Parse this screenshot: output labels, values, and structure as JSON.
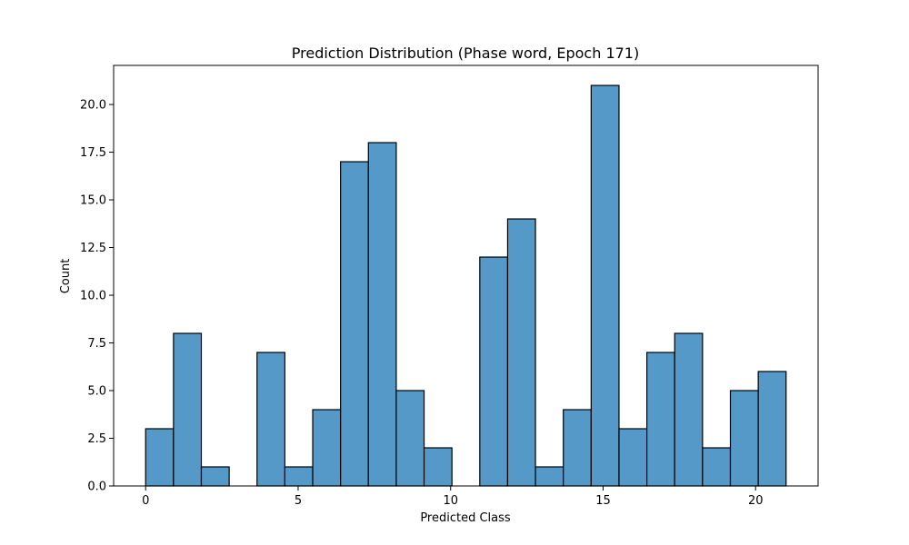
{
  "chart_data": {
    "type": "bar",
    "title": "Prediction Distribution (Phase word, Epoch 171)",
    "xlabel": "Predicted Class",
    "ylabel": "Count",
    "bin_range": [
      0,
      21
    ],
    "bin_count": 23,
    "values": [
      3,
      8,
      1,
      0,
      7,
      1,
      4,
      17,
      18,
      5,
      2,
      0,
      12,
      14,
      1,
      4,
      21,
      3,
      7,
      8,
      2,
      5,
      6
    ],
    "xlim": [
      -1.05,
      22.05
    ],
    "ylim": [
      0,
      22.05
    ],
    "xticks": [
      0,
      5,
      10,
      15,
      20
    ],
    "xtick_labels": [
      "0",
      "5",
      "10",
      "15",
      "20"
    ],
    "yticks": [
      0,
      2.5,
      5,
      7.5,
      10,
      12.5,
      15,
      17.5,
      20
    ],
    "ytick_labels": [
      "0.0",
      "2.5",
      "5.0",
      "7.5",
      "10.0",
      "12.5",
      "15.0",
      "17.5",
      "20.0"
    ],
    "grid": false,
    "bar_color": "#5499c7",
    "edge_color": "#000000"
  }
}
